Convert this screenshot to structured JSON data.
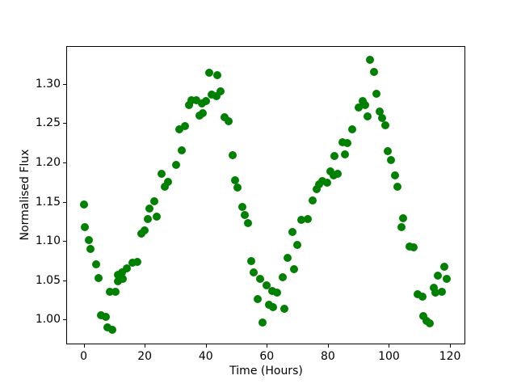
{
  "figure": {
    "background": "#ffffff",
    "spine_color": "#000000",
    "text_color": "#000000"
  },
  "chart_data": {
    "type": "scatter",
    "title": "",
    "xlabel": "Time (Hours)",
    "ylabel": "Normalised Flux",
    "legend": null,
    "grid": false,
    "marker": "circle",
    "marker_color": "#008000",
    "marker_size_px": 10,
    "xlim": [
      -5.45,
      124.75
    ],
    "ylim": [
      0.9695,
      1.347
    ],
    "x_ticks": {
      "values": [
        0,
        20,
        40,
        60,
        80,
        100,
        120
      ],
      "labels": [
        "0",
        "20",
        "40",
        "60",
        "80",
        "100",
        "120"
      ]
    },
    "y_ticks": {
      "values": [
        1.0,
        1.05,
        1.1,
        1.15,
        1.2,
        1.25,
        1.3
      ],
      "labels": [
        "1.00",
        "1.05",
        "1.10",
        "1.15",
        "1.20",
        "1.25",
        "1.30"
      ]
    },
    "points": [
      [
        0.0,
        1.146
      ],
      [
        0.5,
        1.118
      ],
      [
        1.7,
        1.101
      ],
      [
        2.2,
        1.09
      ],
      [
        4.0,
        1.07
      ],
      [
        4.9,
        1.053
      ],
      [
        5.6,
        1.006
      ],
      [
        7.3,
        1.003
      ],
      [
        7.7,
        0.99
      ],
      [
        9.3,
        0.987
      ],
      [
        8.7,
        1.035
      ],
      [
        10.4,
        1.035
      ],
      [
        11.2,
        1.057
      ],
      [
        11.3,
        1.049
      ],
      [
        12.6,
        1.06
      ],
      [
        12.8,
        1.052
      ],
      [
        14.1,
        1.065
      ],
      [
        15.9,
        1.072
      ],
      [
        17.6,
        1.073
      ],
      [
        19.0,
        1.109
      ],
      [
        20.0,
        1.114
      ],
      [
        20.9,
        1.128
      ],
      [
        21.6,
        1.141
      ],
      [
        23.2,
        1.151
      ],
      [
        24.0,
        1.131
      ],
      [
        25.6,
        1.186
      ],
      [
        26.6,
        1.169
      ],
      [
        27.5,
        1.175
      ],
      [
        30.2,
        1.197
      ],
      [
        32.0,
        1.215
      ],
      [
        31.4,
        1.242
      ],
      [
        33.2,
        1.246
      ],
      [
        34.5,
        1.273
      ],
      [
        35.3,
        1.279
      ],
      [
        36.9,
        1.279
      ],
      [
        37.9,
        1.26
      ],
      [
        39.1,
        1.263
      ],
      [
        38.8,
        1.275
      ],
      [
        40.1,
        1.278
      ],
      [
        41.0,
        1.314
      ],
      [
        43.9,
        1.311
      ],
      [
        41.8,
        1.286
      ],
      [
        43.5,
        1.284
      ],
      [
        44.8,
        1.29
      ],
      [
        46.1,
        1.257
      ],
      [
        47.6,
        1.252
      ],
      [
        48.7,
        1.209
      ],
      [
        49.7,
        1.177
      ],
      [
        50.3,
        1.168
      ],
      [
        51.9,
        1.143
      ],
      [
        52.7,
        1.133
      ],
      [
        53.8,
        1.123
      ],
      [
        55.0,
        1.074
      ],
      [
        55.8,
        1.06
      ],
      [
        56.9,
        1.026
      ],
      [
        57.8,
        1.052
      ],
      [
        58.7,
        0.996
      ],
      [
        59.8,
        1.044
      ],
      [
        60.6,
        1.019
      ],
      [
        61.9,
        1.016
      ],
      [
        65.8,
        1.014
      ],
      [
        61.8,
        1.036
      ],
      [
        63.4,
        1.034
      ],
      [
        65.1,
        1.054
      ],
      [
        66.7,
        1.079
      ],
      [
        68.8,
        1.064
      ],
      [
        70.0,
        1.095
      ],
      [
        68.5,
        1.111
      ],
      [
        71.4,
        1.127
      ],
      [
        73.5,
        1.128
      ],
      [
        75.0,
        1.152
      ],
      [
        76.4,
        1.166
      ],
      [
        77.0,
        1.172
      ],
      [
        78.3,
        1.176
      ],
      [
        79.8,
        1.174
      ],
      [
        80.7,
        1.189
      ],
      [
        81.8,
        1.183
      ],
      [
        83.3,
        1.186
      ],
      [
        82.2,
        1.208
      ],
      [
        85.7,
        1.21
      ],
      [
        84.7,
        1.226
      ],
      [
        86.4,
        1.225
      ],
      [
        88.0,
        1.242
      ],
      [
        90.1,
        1.27
      ],
      [
        91.4,
        1.278
      ],
      [
        92.3,
        1.273
      ],
      [
        93.0,
        1.259
      ],
      [
        93.9,
        1.331
      ],
      [
        95.0,
        1.315
      ],
      [
        95.9,
        1.287
      ],
      [
        97.0,
        1.265
      ],
      [
        97.8,
        1.256
      ],
      [
        98.8,
        1.247
      ],
      [
        99.7,
        1.214
      ],
      [
        100.7,
        1.203
      ],
      [
        101.9,
        1.183
      ],
      [
        102.9,
        1.169
      ],
      [
        104.2,
        1.118
      ],
      [
        104.7,
        1.129
      ],
      [
        106.7,
        1.093
      ],
      [
        108.0,
        1.092
      ],
      [
        109.5,
        1.032
      ],
      [
        111.0,
        1.029
      ],
      [
        111.3,
        1.004
      ],
      [
        112.4,
        0.998
      ],
      [
        113.3,
        0.995
      ],
      [
        114.7,
        1.04
      ],
      [
        115.3,
        1.034
      ],
      [
        117.3,
        1.035
      ],
      [
        116.1,
        1.056
      ],
      [
        118.8,
        1.052
      ],
      [
        118.2,
        1.067
      ]
    ]
  }
}
